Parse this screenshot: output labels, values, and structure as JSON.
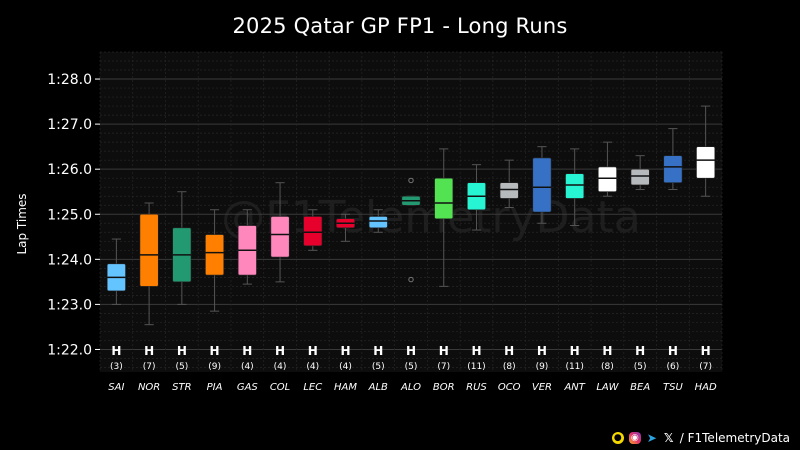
{
  "chart_data": {
    "type": "box",
    "title": "2025 Qatar GP FP1 - Long Runs",
    "xlabel": "",
    "ylabel": "Lap Times",
    "ylim": [
      81.5,
      88.6
    ],
    "yticks": [
      82,
      83,
      84,
      85,
      86,
      87,
      88
    ],
    "ytick_labels": [
      "1:22.0",
      "1:23.0",
      "1:24.0",
      "1:25.0",
      "1:26.0",
      "1:27.0",
      "1:28.0"
    ],
    "grid": true,
    "watermark": "@F1TelemetryData",
    "drivers": [
      {
        "driver": "SAI",
        "tyre": "H",
        "laps": "(3)",
        "color": "#64c4ff",
        "q1": 83.3,
        "median": 83.6,
        "q3": 83.9,
        "whisker_low": 83.0,
        "whisker_high": 84.45,
        "outliers": []
      },
      {
        "driver": "NOR",
        "tyre": "H",
        "laps": "(7)",
        "color": "#ff8000",
        "q1": 83.4,
        "median": 84.1,
        "q3": 85.0,
        "whisker_low": 82.55,
        "whisker_high": 85.25,
        "outliers": []
      },
      {
        "driver": "STR",
        "tyre": "H",
        "laps": "(5)",
        "color": "#229971",
        "q1": 83.5,
        "median": 84.1,
        "q3": 84.7,
        "whisker_low": 83.0,
        "whisker_high": 85.5,
        "outliers": []
      },
      {
        "driver": "PIA",
        "tyre": "H",
        "laps": "(9)",
        "color": "#ff8000",
        "q1": 83.65,
        "median": 84.15,
        "q3": 84.55,
        "whisker_low": 82.85,
        "whisker_high": 85.1,
        "outliers": []
      },
      {
        "driver": "GAS",
        "tyre": "H",
        "laps": "(4)",
        "color": "#ff87bc",
        "q1": 83.65,
        "median": 84.2,
        "q3": 84.75,
        "whisker_low": 83.45,
        "whisker_high": 85.1,
        "outliers": []
      },
      {
        "driver": "COL",
        "tyre": "H",
        "laps": "(4)",
        "color": "#ff87bc",
        "q1": 84.05,
        "median": 84.55,
        "q3": 84.95,
        "whisker_low": 83.5,
        "whisker_high": 85.7,
        "outliers": []
      },
      {
        "driver": "LEC",
        "tyre": "H",
        "laps": "(4)",
        "color": "#e8002d",
        "q1": 84.3,
        "median": 84.6,
        "q3": 84.95,
        "whisker_low": 84.2,
        "whisker_high": 85.1,
        "outliers": []
      },
      {
        "driver": "HAM",
        "tyre": "H",
        "laps": "(4)",
        "color": "#e8002d",
        "q1": 84.7,
        "median": 84.8,
        "q3": 84.9,
        "whisker_low": 84.4,
        "whisker_high": 85.0,
        "outliers": []
      },
      {
        "driver": "ALB",
        "tyre": "H",
        "laps": "(5)",
        "color": "#64c4ff",
        "q1": 84.7,
        "median": 84.85,
        "q3": 84.95,
        "whisker_low": 84.6,
        "whisker_high": 85.1,
        "outliers": []
      },
      {
        "driver": "ALO",
        "tyre": "H",
        "laps": "(5)",
        "color": "#229971",
        "q1": 85.2,
        "median": 85.3,
        "q3": 85.4,
        "whisker_low": 85.2,
        "whisker_high": 85.4,
        "outliers": [
          85.75,
          83.55
        ]
      },
      {
        "driver": "BOR",
        "tyre": "H",
        "laps": "(7)",
        "color": "#52e252",
        "q1": 84.9,
        "median": 85.25,
        "q3": 85.8,
        "whisker_low": 83.4,
        "whisker_high": 86.45,
        "outliers": []
      },
      {
        "driver": "RUS",
        "tyre": "H",
        "laps": "(11)",
        "color": "#27f4d2",
        "q1": 85.1,
        "median": 85.4,
        "q3": 85.7,
        "whisker_low": 84.65,
        "whisker_high": 86.1,
        "outliers": []
      },
      {
        "driver": "OCO",
        "tyre": "H",
        "laps": "(8)",
        "color": "#b6babd",
        "q1": 85.35,
        "median": 85.55,
        "q3": 85.7,
        "whisker_low": 85.15,
        "whisker_high": 86.2,
        "outliers": []
      },
      {
        "driver": "VER",
        "tyre": "H",
        "laps": "(9)",
        "color": "#3671c6",
        "q1": 85.05,
        "median": 85.6,
        "q3": 86.25,
        "whisker_low": 84.8,
        "whisker_high": 86.5,
        "outliers": []
      },
      {
        "driver": "ANT",
        "tyre": "H",
        "laps": "(11)",
        "color": "#27f4d2",
        "q1": 85.35,
        "median": 85.65,
        "q3": 85.9,
        "whisker_low": 84.75,
        "whisker_high": 86.45,
        "outliers": []
      },
      {
        "driver": "LAW",
        "tyre": "H",
        "laps": "(8)",
        "color": "#ffffff",
        "q1": 85.5,
        "median": 85.8,
        "q3": 86.05,
        "whisker_low": 85.4,
        "whisker_high": 86.6,
        "outliers": []
      },
      {
        "driver": "BEA",
        "tyre": "H",
        "laps": "(5)",
        "color": "#b6babd",
        "q1": 85.65,
        "median": 85.85,
        "q3": 86.0,
        "whisker_low": 85.55,
        "whisker_high": 86.3,
        "outliers": []
      },
      {
        "driver": "TSU",
        "tyre": "H",
        "laps": "(6)",
        "color": "#3671c6",
        "q1": 85.7,
        "median": 86.05,
        "q3": 86.3,
        "whisker_low": 85.55,
        "whisker_high": 86.9,
        "outliers": []
      },
      {
        "driver": "HAD",
        "tyre": "H",
        "laps": "(7)",
        "color": "#ffffff",
        "q1": 85.8,
        "median": 86.2,
        "q3": 86.5,
        "whisker_low": 85.4,
        "whisker_high": 87.4,
        "outliers": []
      }
    ]
  },
  "footer": {
    "handle": "/ F1TelemetryData",
    "snapchat_icon": "snapchat-icon",
    "instagram_icon": "instagram-icon",
    "telegram_icon": "telegram-icon",
    "x_icon": "x-icon"
  },
  "colors": {
    "background": "#000000",
    "plot_background": "#0d0d0d",
    "grid_major": "#3a3a3a",
    "grid_minor": "#262626",
    "text": "#ffffff",
    "whisker": "#555555"
  }
}
